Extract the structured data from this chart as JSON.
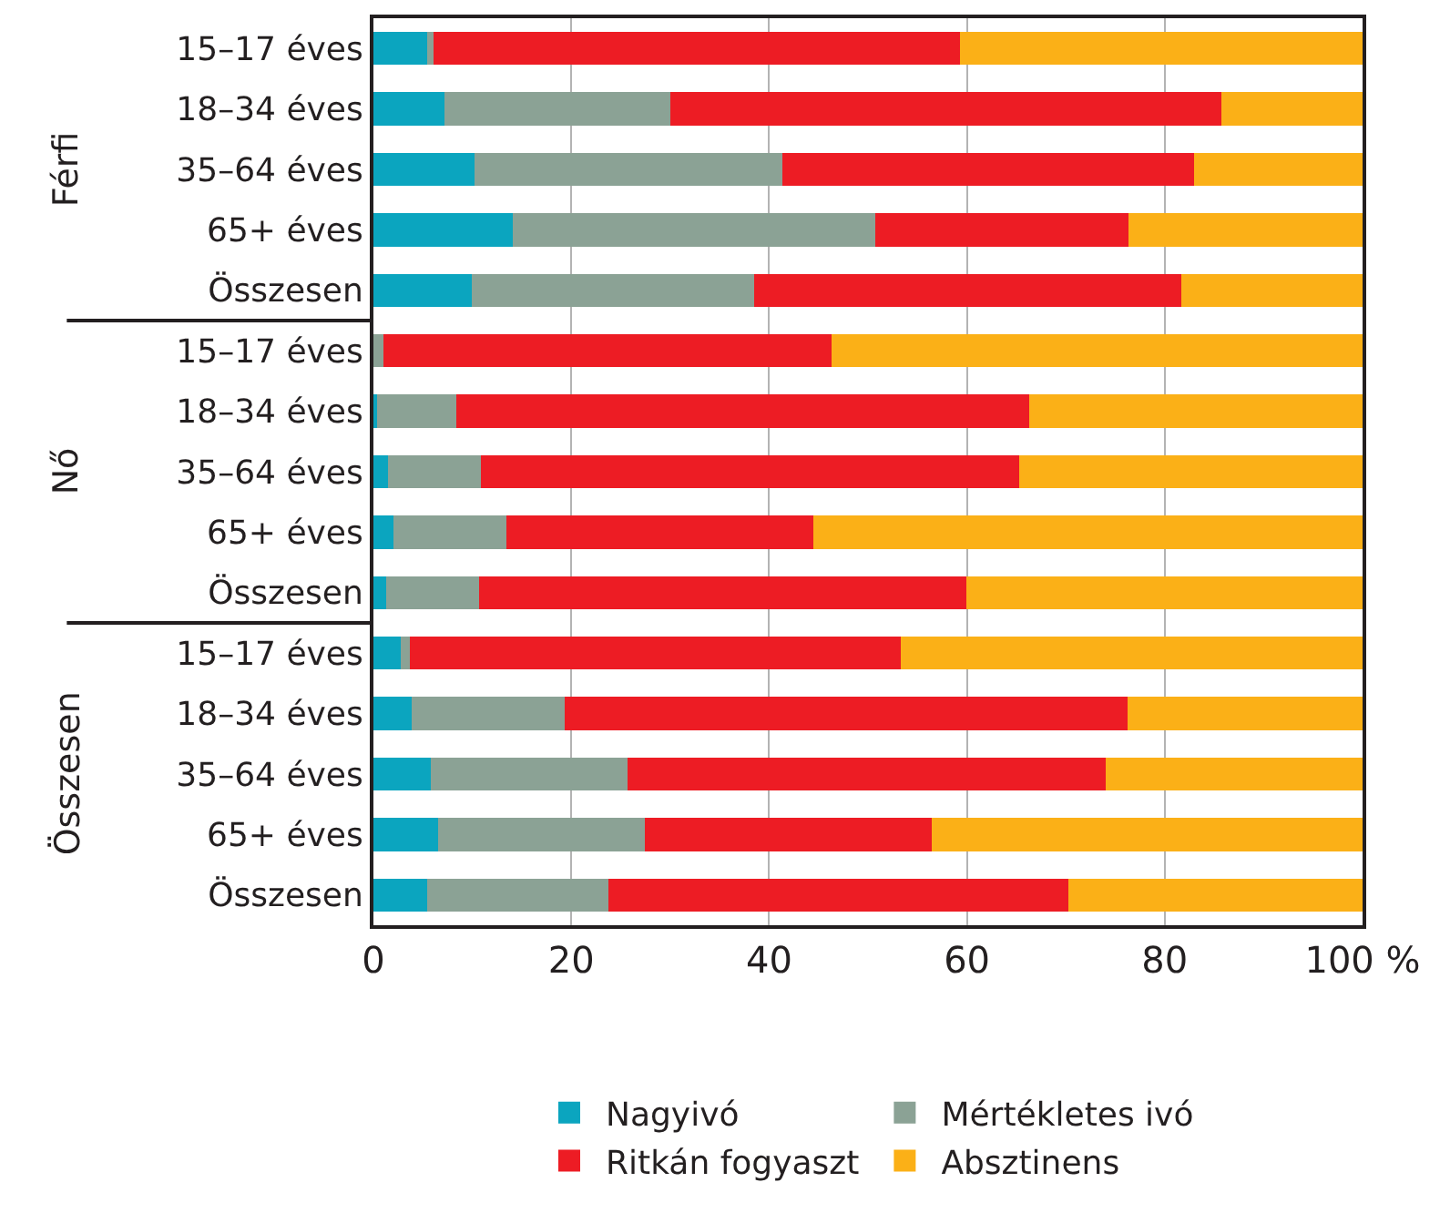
{
  "chart_data": {
    "type": "bar",
    "orientation": "horizontal",
    "stacked": true,
    "categories": [
      "15–17 éves",
      "18–34 éves",
      "35–64 éves",
      "65+ éves",
      "Összesen",
      "15–17 éves",
      "18–34 éves",
      "35–64 éves",
      "65+ éves",
      "Összesen",
      "15–17 éves",
      "18–34 éves",
      "35–64 éves",
      "65+ éves",
      "Összesen"
    ],
    "annotations": [
      "Férfi",
      "Nő",
      "Összesen"
    ],
    "series": [
      {
        "name": "Nagyivó",
        "color": "#0ba5bf",
        "values": [
          5.4,
          7.2,
          10.2,
          14.1,
          9.9,
          0,
          0.4,
          1.5,
          2.0,
          1.3,
          2.8,
          3.9,
          5.8,
          6.5,
          5.4
        ]
      },
      {
        "name": "Mértékletes ivó",
        "color": "#8ba295",
        "values": [
          0.7,
          22.8,
          31.1,
          36.6,
          28.6,
          1.0,
          8.0,
          9.4,
          11.4,
          9.4,
          0.9,
          15.4,
          19.9,
          20.9,
          18.4
        ]
      },
      {
        "name": "Ritkán fogyaszt",
        "color": "#ed1c24",
        "values": [
          53.2,
          55.7,
          41.7,
          25.6,
          43.2,
          45.3,
          57.9,
          54.4,
          31.1,
          49.2,
          49.6,
          56.9,
          48.3,
          29.0,
          46.5
        ]
      },
      {
        "name": "Absztinens",
        "color": "#fbb017",
        "values": [
          40.7,
          14.3,
          17.0,
          23.7,
          18.3,
          53.7,
          33.7,
          34.7,
          55.5,
          40.1,
          46.7,
          23.8,
          26.0,
          43.6,
          29.7
        ]
      }
    ],
    "xlim": [
      0,
      100
    ],
    "xticks": [
      0,
      20,
      40,
      60,
      80,
      {
        "value": 100,
        "label": "100 %"
      }
    ],
    "grid": "x",
    "legend": "bottom"
  }
}
